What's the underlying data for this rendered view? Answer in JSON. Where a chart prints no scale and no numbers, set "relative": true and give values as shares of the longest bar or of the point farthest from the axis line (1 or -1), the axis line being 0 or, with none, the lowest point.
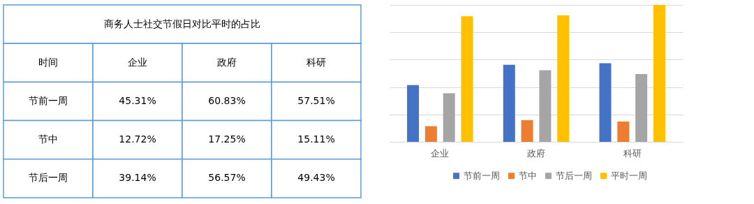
{
  "chart_data": [
    {
      "type": "other",
      "title": "商务人士社交节假日对比平时的占比",
      "categories": [
        "时间",
        "企业",
        "政府",
        "科研"
      ],
      "y_categories": [
        "节前一周",
        "节中",
        "节后一周"
      ],
      "cell_labels": [
        [
          "45.31%",
          "60.83%",
          "57.51%"
        ],
        [
          "12.72%",
          "17.25%",
          "15.11%"
        ],
        [
          "39.14%",
          "56.57%",
          "49.43%"
        ]
      ]
    },
    {
      "type": "bar",
      "relative": true,
      "categories": [
        "企业",
        "政府",
        "科研"
      ],
      "grid": "y",
      "legend": "bottom",
      "series": [
        {
          "name": "节前一周",
          "color": "#4472c4",
          "values": [
            0.415,
            0.563,
            0.574
          ]
        },
        {
          "name": "节中",
          "color": "#ed7d31",
          "values": [
            0.114,
            0.158,
            0.148
          ]
        },
        {
          "name": "节后一周",
          "color": "#a5a5a5",
          "values": [
            0.355,
            0.523,
            0.495
          ]
        },
        {
          "name": "平时一周",
          "color": "#ffc000",
          "values": [
            0.917,
            0.923,
            1.0
          ]
        }
      ]
    }
  ]
}
